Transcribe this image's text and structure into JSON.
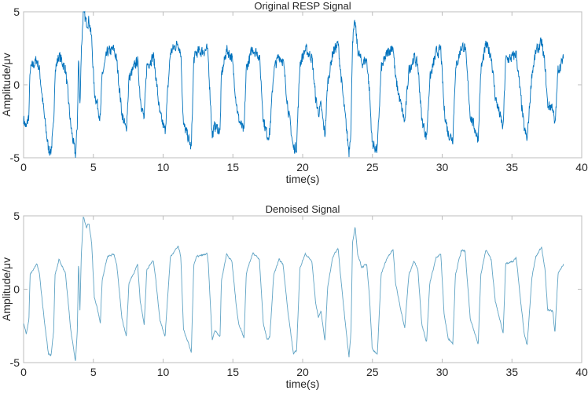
{
  "chart_data": [
    {
      "type": "line",
      "title": "Original RESP Signal",
      "xlabel": "time(s)",
      "ylabel": "Amplitude/μv",
      "xlim": [
        0,
        40
      ],
      "ylim": [
        -5,
        5
      ],
      "xticks": [
        "0",
        "5",
        "10",
        "15",
        "20",
        "25",
        "30",
        "35",
        "40"
      ],
      "yticks": [
        "-5",
        "0",
        "5"
      ],
      "grid": false,
      "color": "#0072BD",
      "noise": 0.35,
      "series": [
        {
          "name": "RESP",
          "t": [
            0,
            0.19,
            0.38,
            0.47,
            0.94,
            1.13,
            1.5,
            1.78,
            1.97,
            2.16,
            2.25,
            2.54,
            3.0,
            3.38,
            3.57,
            3.72,
            3.85,
            3.94,
            4.04,
            4.13,
            4.28,
            4.5,
            4.69,
            4.88,
            5.07,
            5.26,
            5.5,
            5.63,
            6.01,
            6.48,
            6.67,
            7.04,
            7.36,
            7.55,
            8.17,
            8.36,
            8.64,
            8.83,
            9.3,
            9.48,
            9.77,
            10.14,
            10.52,
            11.08,
            11.27,
            11.46,
            11.83,
            12.02,
            12.2,
            12.39,
            13.15,
            13.24,
            13.52,
            13.71,
            14.08,
            14.18,
            14.55,
            14.93,
            15.21,
            15.4,
            15.8,
            15.96,
            16.43,
            16.9,
            17.18,
            17.46,
            17.65,
            17.93,
            18.31,
            18.59,
            18.97,
            19.34,
            19.56,
            19.81,
            20.19,
            20.66,
            20.94,
            21.13,
            21.31,
            21.6,
            21.79,
            22.15,
            22.54,
            22.91,
            23.32,
            23.47,
            23.57,
            23.76,
            23.94,
            24.23,
            24.6,
            24.79,
            24.98,
            25.35,
            25.63,
            26.1,
            26.48,
            26.66,
            27.04,
            27.32,
            27.61,
            27.98,
            28.26,
            28.54,
            28.88,
            29.11,
            29.58,
            29.9,
            30.14,
            30.42,
            30.76,
            30.95,
            31.36,
            31.64,
            32.02,
            32.58,
            32.77,
            33.14,
            33.52,
            33.8,
            34.37,
            34.55,
            35.12,
            35.3,
            35.59,
            35.87,
            36.09,
            36.43,
            36.71,
            37.13,
            37.37,
            37.56,
            37.93,
            38.08,
            38.31,
            38.69
          ],
          "v": [
            -2.3,
            -3.0,
            -2.1,
            1.0,
            1.7,
            1.1,
            -2.3,
            -4.4,
            -4.5,
            -2.8,
            1.0,
            2.0,
            1.1,
            -2.8,
            -4.0,
            -4.9,
            -2.8,
            2.0,
            -1.5,
            2.2,
            5.0,
            4.2,
            4.5,
            3.1,
            -0.5,
            -1.2,
            -2.3,
            0.6,
            2.2,
            2.4,
            1.7,
            -1.9,
            -3.2,
            0.4,
            1.7,
            -0.8,
            -2.4,
            1.3,
            2.0,
            0.6,
            -2.1,
            -3.2,
            2.2,
            2.9,
            2.2,
            -2.8,
            -3.7,
            -4.4,
            1.7,
            2.2,
            2.4,
            1.7,
            -3.5,
            -2.8,
            -3.2,
            0.6,
            2.4,
            1.9,
            -0.8,
            -2.3,
            -3.3,
            1.1,
            2.5,
            2.0,
            -2.3,
            -3.5,
            -3.2,
            1.0,
            2.0,
            1.7,
            -1.7,
            -4.4,
            -4.2,
            1.5,
            2.4,
            1.9,
            -1.0,
            -1.9,
            -1.5,
            -3.5,
            0.1,
            2.2,
            2.8,
            -1.0,
            -4.6,
            -2.8,
            3.1,
            4.2,
            2.4,
            1.5,
            1.7,
            -0.5,
            -4.0,
            -4.5,
            1.1,
            2.2,
            2.7,
            0.4,
            -1.4,
            -2.6,
            1.0,
            1.9,
            1.3,
            -2.4,
            -3.6,
            0.4,
            2.2,
            2.4,
            -1.7,
            -3.3,
            -3.7,
            1.0,
            2.6,
            2.6,
            -2.1,
            -3.7,
            1.0,
            2.7,
            2.0,
            -0.8,
            -3.0,
            1.7,
            1.9,
            2.2,
            -0.5,
            -3.0,
            -3.8,
            0.8,
            2.2,
            2.9,
            1.3,
            -1.4,
            -1.5,
            -3.0,
            1.1,
            1.7
          ]
        }
      ]
    },
    {
      "type": "line",
      "title": "Denoised Signal",
      "xlabel": "time(s)",
      "ylabel": "Amplitude/μv",
      "xlim": [
        0,
        40
      ],
      "ylim": [
        -5,
        5
      ],
      "xticks": [
        "0",
        "5",
        "10",
        "15",
        "20",
        "25",
        "30",
        "35",
        "40"
      ],
      "yticks": [
        "-5",
        "0",
        "5"
      ],
      "grid": false,
      "color": "#5FA3C4",
      "noise": 0.12,
      "series": [
        {
          "name": "Denoised",
          "source": "same waveform as Original RESP Signal, smoothed"
        }
      ]
    }
  ]
}
